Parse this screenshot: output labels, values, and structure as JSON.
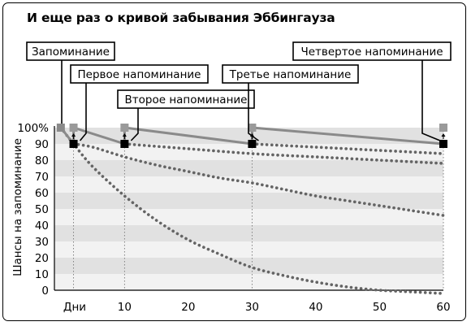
{
  "chart_data": {
    "type": "line",
    "title": "И еще раз о кривой забывания Эббингауза",
    "xlabel": "Дни",
    "ylabel": "Шансы на запоминание",
    "x_ticks": [
      "10",
      "20",
      "30",
      "40",
      "50",
      "60"
    ],
    "y_ticks": [
      "100%",
      "90",
      "80",
      "70",
      "60",
      "50",
      "40",
      "30",
      "20",
      "10",
      "0"
    ],
    "xlim": [
      -1,
      60
    ],
    "ylim": [
      0,
      100
    ],
    "grid": "alternating horizontal bands",
    "callouts": [
      {
        "label": "Запоминание",
        "day": 0
      },
      {
        "label": "Первое напоминание",
        "day": 2
      },
      {
        "label": "Второе напоминание",
        "day": 10
      },
      {
        "label": "Третье напоминание",
        "day": 30
      },
      {
        "label": "Четвертое напоминание",
        "day": 60
      }
    ],
    "series": [
      {
        "style": "dotted",
        "x": [
          0,
          2,
          5,
          10,
          15,
          20,
          25,
          30,
          35,
          40,
          45,
          50,
          55,
          60
        ],
        "values": [
          100,
          90,
          76,
          58,
          43,
          31,
          22,
          14,
          9,
          5,
          2,
          0,
          -1,
          -2
        ]
      },
      {
        "style": "dotted",
        "x": [
          2,
          5,
          10,
          15,
          20,
          25,
          30,
          35,
          40,
          45,
          50,
          55,
          60
        ],
        "values": [
          90,
          88,
          82,
          77,
          73,
          69,
          66,
          62,
          58,
          55,
          52,
          49,
          46
        ]
      },
      {
        "style": "dotted",
        "x": [
          10,
          20,
          30,
          40,
          50,
          60
        ],
        "values": [
          90,
          87,
          84,
          82,
          80,
          78
        ]
      },
      {
        "style": "dotted",
        "x": [
          30,
          40,
          50,
          60
        ],
        "values": [
          90,
          88,
          86,
          84
        ]
      },
      {
        "style": "solid",
        "x": [
          0,
          2,
          2,
          10,
          10,
          30,
          30,
          60
        ],
        "values": [
          100,
          90,
          100,
          90,
          100,
          90,
          100,
          90
        ]
      }
    ],
    "recall_points": [
      {
        "day": 0,
        "value": 100
      },
      {
        "day": 2,
        "value": 90
      },
      {
        "day": 10,
        "value": 90
      },
      {
        "day": 30,
        "value": 90
      },
      {
        "day": 60,
        "value": 90
      }
    ],
    "refresh_points": [
      {
        "day": 2,
        "value": 100
      },
      {
        "day": 10,
        "value": 100
      },
      {
        "day": 30,
        "value": 100
      },
      {
        "day": 60,
        "value": 100
      }
    ],
    "colors": {
      "band_dark": "#e1e1e1",
      "band_light": "#f2f2f2",
      "curve_solid": "#8a8a8a",
      "curve_dotted": "#646464",
      "recall_marker": "#000000",
      "refresh_marker": "#9a9a9a"
    }
  }
}
